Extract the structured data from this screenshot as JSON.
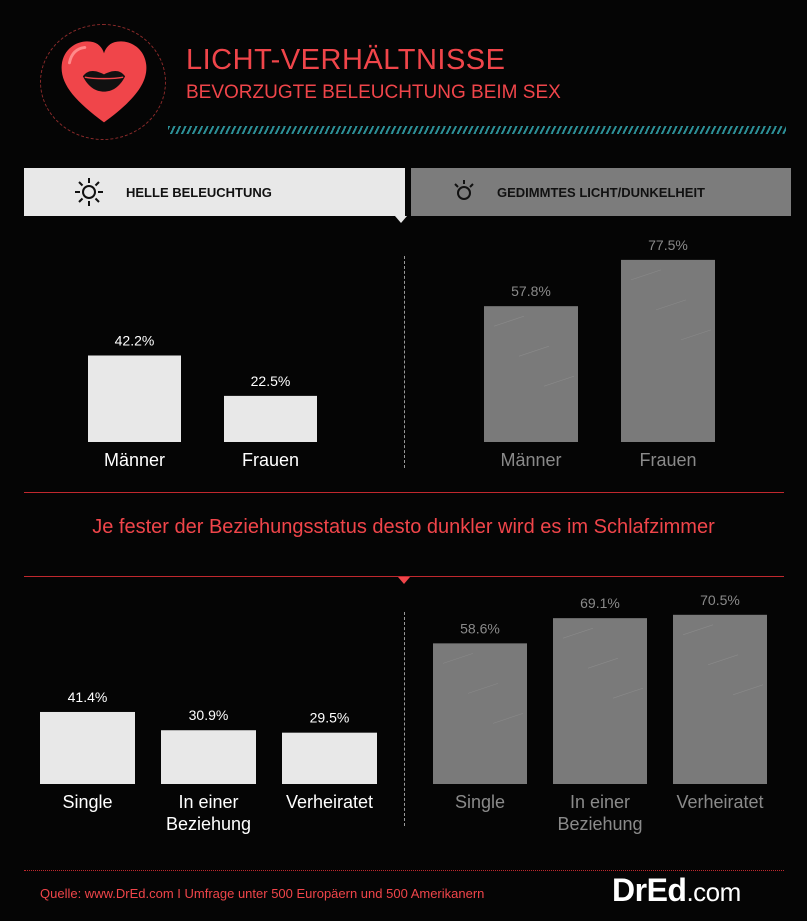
{
  "header": {
    "title": "LICHT-VERHÄLTNISSE",
    "subtitle": "BEVORZUGTE BELEUCHTUNG BEIM SEX"
  },
  "tabs": {
    "bright_label": "HELLE BELEUCHTUNG",
    "dim_label": "GEDIMMTES LICHT/DUNKELHEIT"
  },
  "middle_statement": "Je fester der Beziehungsstatus desto dunkler wird es im Schlafzimmer",
  "footer": {
    "source": "Quelle: www.DrEd.com I Umfrage unter 500 Europäern und 500 Amerikanern",
    "brand": "DrEd",
    "brand_suffix": ".com"
  },
  "colors": {
    "accent": "#f0454a",
    "bright_bar": "#e8e8e8",
    "dim_bar": "#7a7a7a",
    "dim_label": "#8a8a8a"
  },
  "chart_data": [
    {
      "type": "bar",
      "group": "HELLE BELEUCHTUNG",
      "categories": [
        "Männer",
        "Frauen"
      ],
      "values": [
        42.2,
        22.5
      ],
      "value_labels": [
        "42.2%",
        "22.5%"
      ],
      "ylim": [
        0,
        100
      ]
    },
    {
      "type": "bar",
      "group": "GEDIMMTES LICHT/DUNKELHEIT",
      "categories": [
        "Männer",
        "Frauen"
      ],
      "values": [
        57.8,
        77.5
      ],
      "value_labels": [
        "57.8%",
        "77.5%"
      ],
      "ylim": [
        0,
        100
      ]
    },
    {
      "type": "bar",
      "group": "HELLE BELEUCHTUNG",
      "categories": [
        "Single",
        "In einer\nBeziehung",
        "Verheiratet"
      ],
      "values": [
        41.4,
        30.9,
        29.5
      ],
      "value_labels": [
        "41.4%",
        "30.9%",
        "29.5%"
      ],
      "ylim": [
        0,
        100
      ]
    },
    {
      "type": "bar",
      "group": "GEDIMMTES LICHT/DUNKELHEIT",
      "categories": [
        "Single",
        "In einer\nBeziehung",
        "Verheiratet"
      ],
      "values": [
        58.6,
        69.1,
        70.5
      ],
      "value_labels": [
        "58.6%",
        "69.1%",
        "70.5%"
      ],
      "ylim": [
        0,
        100
      ]
    }
  ]
}
